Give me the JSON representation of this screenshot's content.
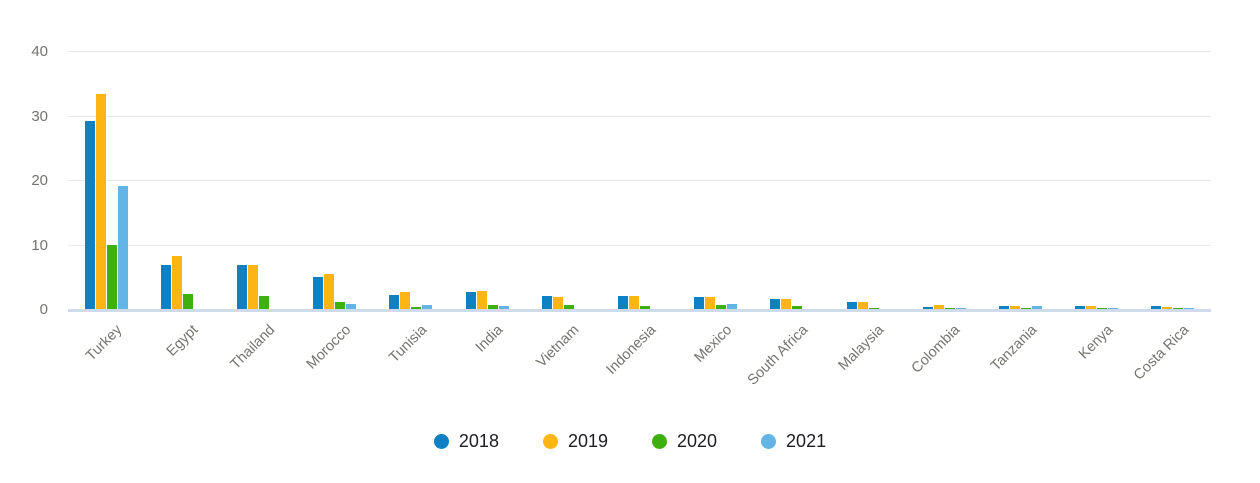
{
  "chart_data": {
    "type": "bar",
    "title": "",
    "xlabel": "",
    "ylabel": "",
    "categories": [
      "Turkey",
      "Egypt",
      "Thailand",
      "Morocco",
      "Tunisia",
      "India",
      "Vietnam",
      "Indonesia",
      "Mexico",
      "South Africa",
      "Malaysia",
      "Colombia",
      "Tanzania",
      "Kenya",
      "Costa Rica"
    ],
    "series": [
      {
        "name": "2018",
        "color": "#0e80c4",
        "values": [
          29.2,
          6.8,
          6.9,
          5.0,
          2.2,
          2.7,
          2.0,
          2.0,
          1.9,
          1.5,
          1.1,
          0.3,
          0.4,
          0.4,
          0.4
        ]
      },
      {
        "name": "2019",
        "color": "#fdb515",
        "values": [
          33.4,
          8.2,
          6.9,
          5.5,
          2.7,
          2.8,
          1.9,
          2.1,
          1.9,
          1.6,
          1.1,
          0.65,
          0.4,
          0.45,
          0.35
        ]
      },
      {
        "name": "2020",
        "color": "#3fb10f",
        "values": [
          9.9,
          2.3,
          2.0,
          1.1,
          0.3,
          0.6,
          0.7,
          0.4,
          0.6,
          0.4,
          0.15,
          0.1,
          0.15,
          0.1,
          0.2
        ]
      },
      {
        "name": "2021",
        "color": "#62b5e4",
        "values": [
          19.0,
          0,
          0,
          0.8,
          0.6,
          0.4,
          0,
          0,
          0.8,
          0,
          0,
          0.1,
          0.4,
          0.1,
          0.15
        ]
      }
    ],
    "y_ticks": [
      0,
      10,
      20,
      30,
      40
    ],
    "ylim": [
      0,
      40
    ],
    "grid": true,
    "legend_position": "bottom",
    "colors": {
      "grid_line": "#e9e9e9",
      "zero_line": "#cfdbeb",
      "axis_text": "#75746f",
      "legend_text": "#1e1d23"
    }
  }
}
